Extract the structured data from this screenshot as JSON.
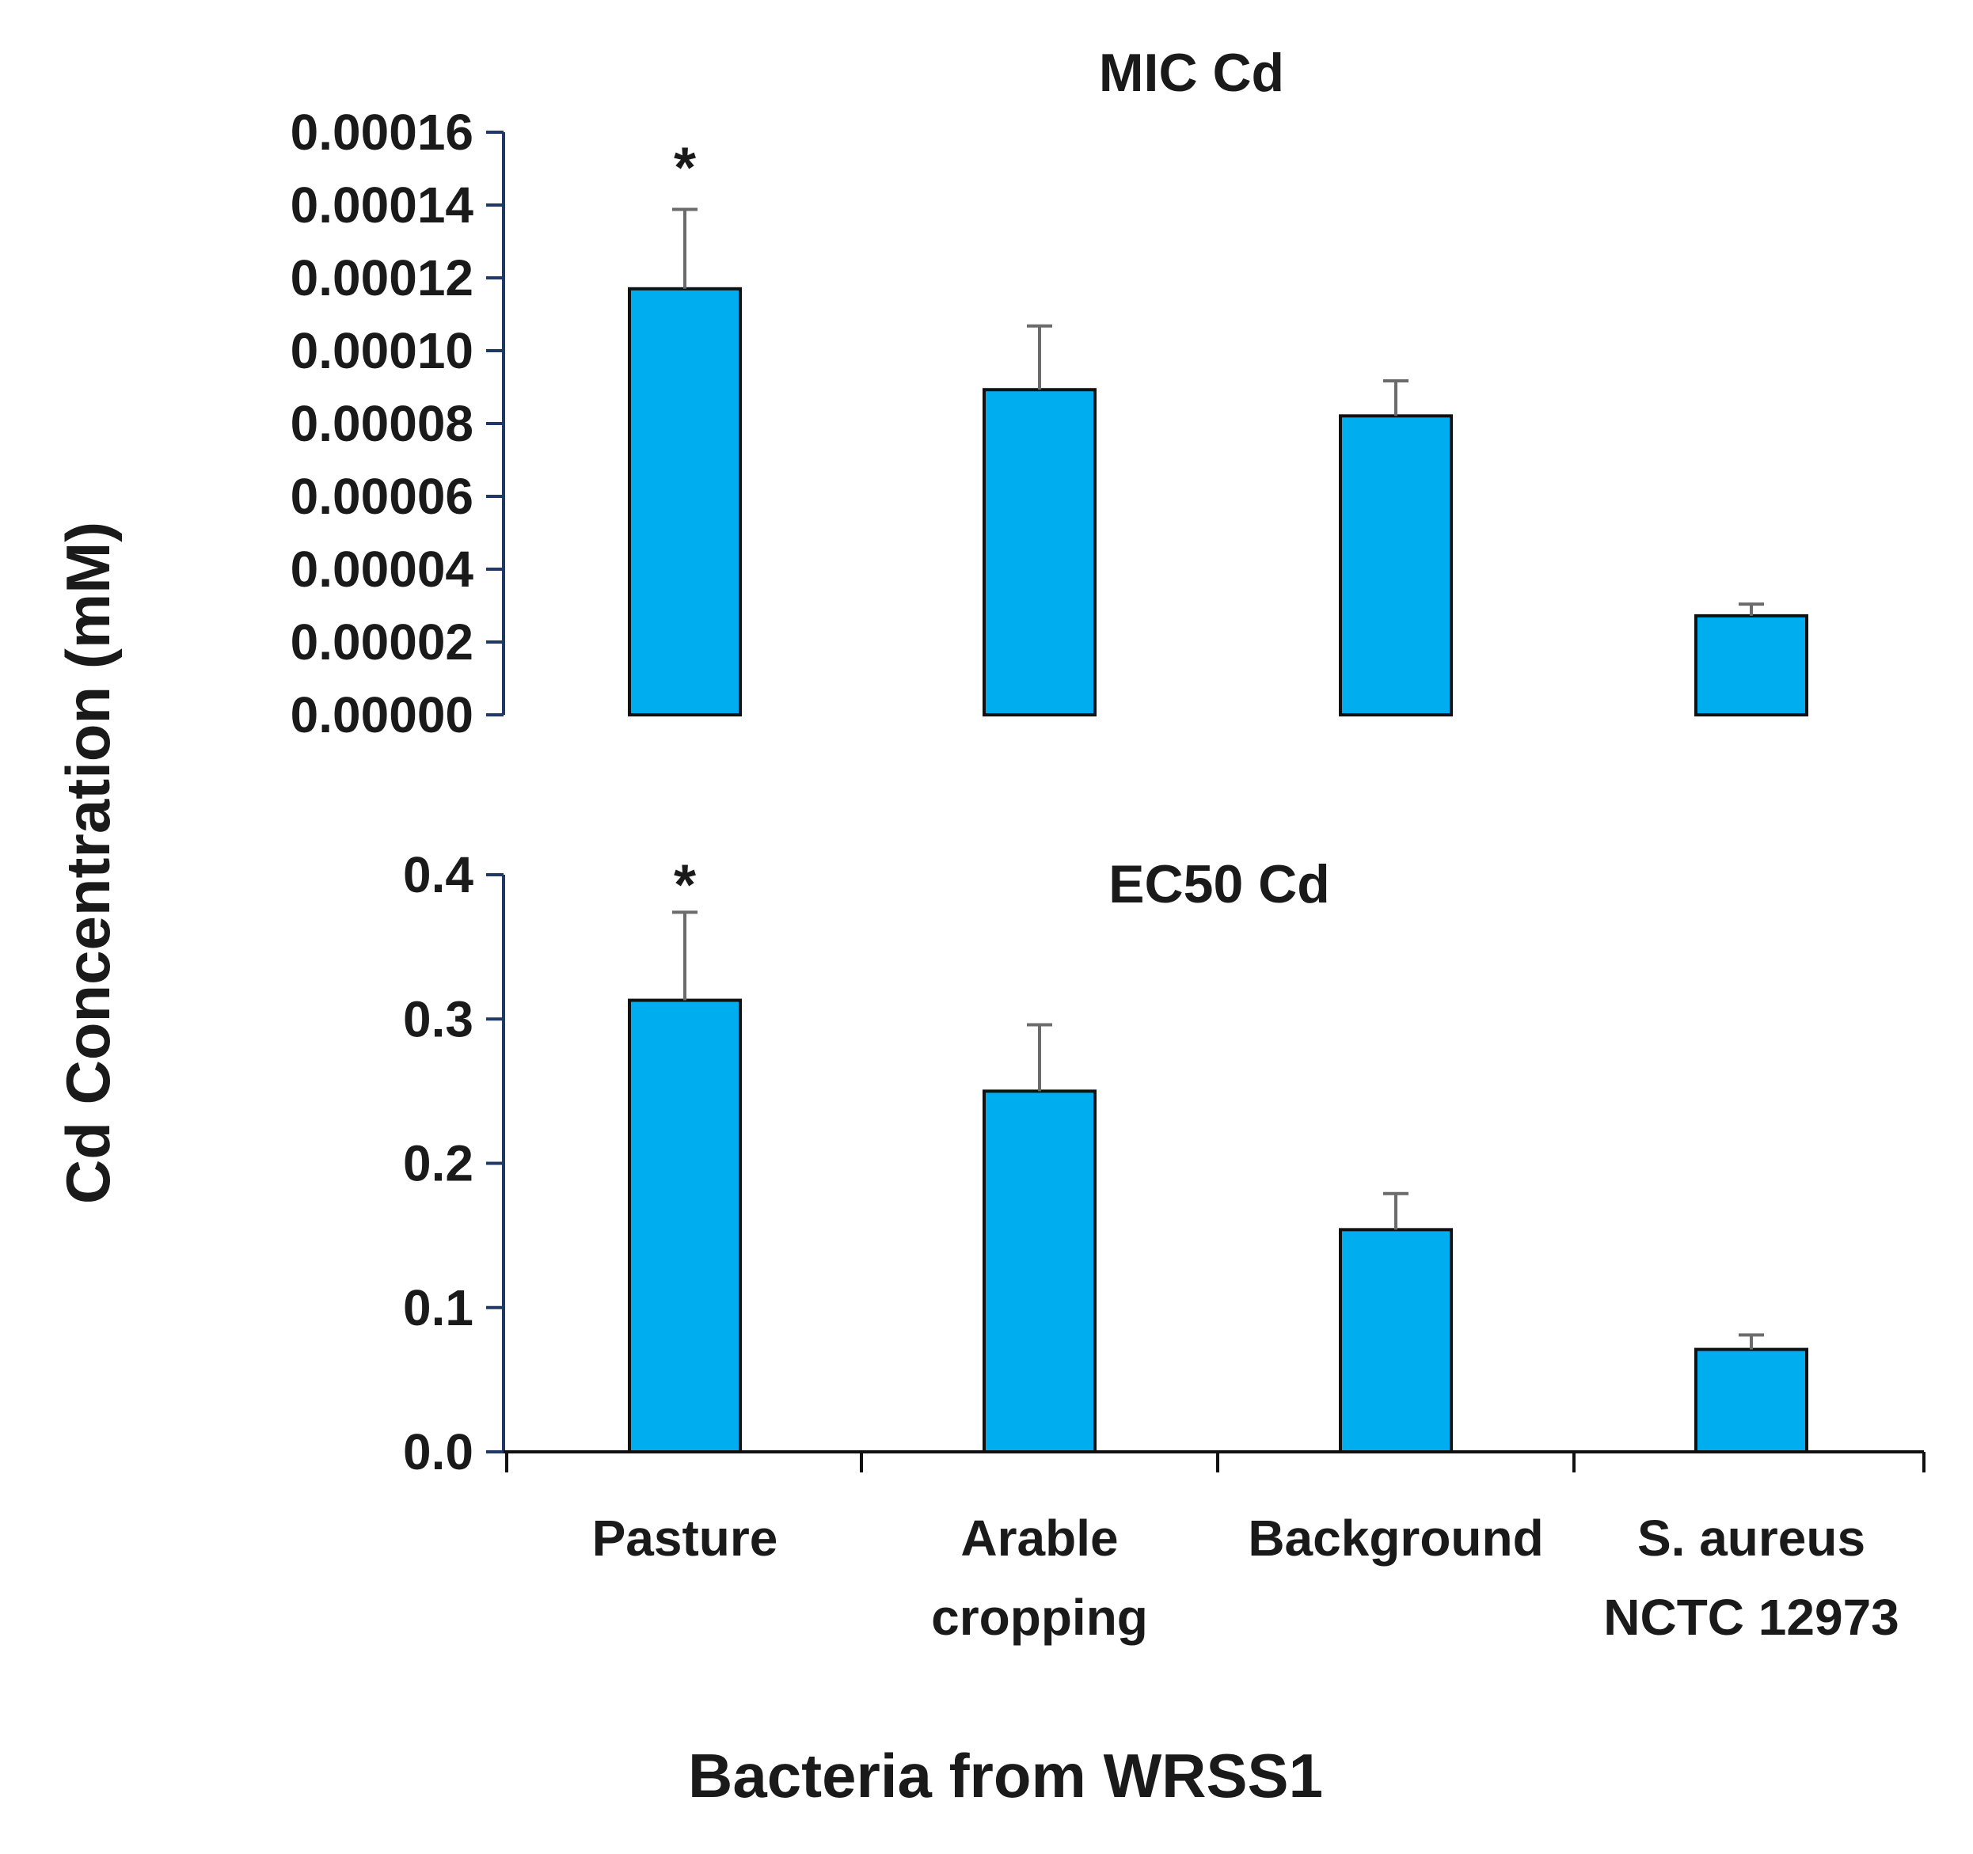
{
  "figure": {
    "ylabel": "Cd Concentration (mM)",
    "xlabel": "Bacteria from WRSS1",
    "category_lines": [
      [
        "Pasture"
      ],
      [
        "Arable",
        "cropping"
      ],
      [
        "Background"
      ],
      [
        "S. aureus",
        "NCTC 12973"
      ]
    ]
  },
  "colors": {
    "bar": "#00aeef",
    "bar_stroke": "#111111",
    "axis": "#1f3864",
    "error": "#6b6b6b",
    "text": "#1a1a1a"
  },
  "chart_data": [
    {
      "type": "bar",
      "title": "MIC Cd",
      "categories": [
        "Pasture",
        "Arable cropping",
        "Background",
        "S. aureus NCTC 12973"
      ],
      "values": [
        0.000117,
        8.93e-05,
        8.21e-05,
        2.72e-05
      ],
      "errors": [
        2.18e-05,
        1.75e-05,
        9.6e-06,
        3.2e-06
      ],
      "significance": [
        "*",
        "",
        "",
        ""
      ],
      "ylim": [
        0,
        0.00016
      ],
      "yticks": [
        0,
        2e-05,
        4e-05,
        6e-05,
        8e-05,
        0.0001,
        0.00012,
        0.00014,
        0.00016
      ],
      "ytick_labels": [
        "0.00000",
        "0.00002",
        "0.00004",
        "0.00006",
        "0.00008",
        "0.00010",
        "0.00012",
        "0.00014",
        "0.00016"
      ],
      "xlabel": "",
      "ylabel": "Cd Concentration (mM)"
    },
    {
      "type": "bar",
      "title": "EC50 Cd",
      "categories": [
        "Pasture",
        "Arable cropping",
        "Background",
        "S. aureus NCTC 12973"
      ],
      "values": [
        0.313,
        0.25,
        0.154,
        0.071
      ],
      "errors": [
        0.061,
        0.046,
        0.025,
        0.01
      ],
      "significance": [
        "*",
        "",
        "",
        ""
      ],
      "ylim": [
        0,
        0.4
      ],
      "yticks": [
        0,
        0.1,
        0.2,
        0.3,
        0.4
      ],
      "ytick_labels": [
        "0.0",
        "0.1",
        "0.2",
        "0.3",
        "0.4"
      ],
      "xlabel": "Bacteria from WRSS1",
      "ylabel": "Cd Concentration (mM)"
    }
  ]
}
